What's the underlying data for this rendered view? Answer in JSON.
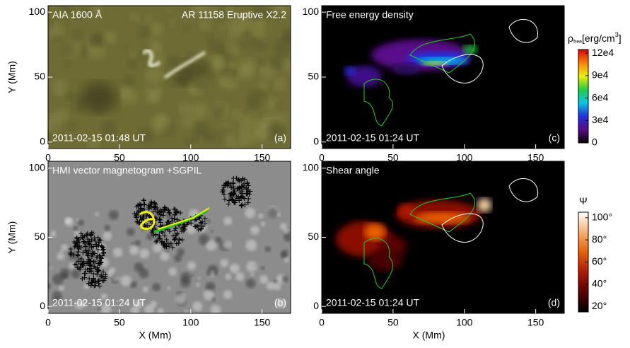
{
  "chart_data": [
    {
      "type": "image",
      "title": "AIA 1600 Å",
      "subtitle": "AR 11158 Eruptive X2.2",
      "timestamp": "2011-02-15 01:48 UT",
      "panel_label": "(a)",
      "ylabel": "Y (Mm)",
      "xlim": [
        0,
        170
      ],
      "ylim": [
        -5,
        105
      ],
      "xticks": [
        0,
        50,
        100,
        150
      ],
      "yticks": [
        0,
        50,
        100
      ]
    },
    {
      "type": "image",
      "title": "HMI vector magnetogram +SGPIL",
      "timestamp": "2011-02-15 01:24 UT",
      "panel_label": "(b)",
      "ylabel": "Y (Mm)",
      "xlabel": "X (Mm)",
      "xlim": [
        0,
        170
      ],
      "ylim": [
        -5,
        105
      ],
      "xticks": [
        0,
        50,
        100,
        150
      ],
      "yticks": [
        0,
        50,
        100
      ]
    },
    {
      "type": "image",
      "title": "Free energy density",
      "timestamp": "2011-02-15 01:24 UT",
      "panel_label": "(c)",
      "xlim": [
        0,
        170
      ],
      "ylim": [
        -5,
        105
      ],
      "xticks": [
        0,
        50,
        100,
        150
      ],
      "yticks": [
        0,
        50,
        100
      ],
      "colorbar": {
        "label": {
          "symbol": "ρ",
          "sub": "free",
          "unit": "[erg/cm",
          "sup": "3",
          "end": "]"
        },
        "colors": [
          "#000000",
          "#5a0a8a",
          "#2030e0",
          "#00c8e8",
          "#20d040",
          "#f0f000",
          "#ff8000",
          "#e00000"
        ],
        "lim": [
          0,
          125000
        ],
        "ticks": [
          0,
          {
            "value": 30000,
            "label": "3e4"
          },
          {
            "value": 60000,
            "label": "6e4"
          },
          {
            "value": 90000,
            "label": "9e4"
          },
          {
            "value": 120000,
            "label": "12e4"
          }
        ]
      }
    },
    {
      "type": "image",
      "title": "Shear angle",
      "timestamp": "2011-02-15 01:24 UT",
      "panel_label": "(d)",
      "xlabel": "X (Mm)",
      "xlim": [
        0,
        170
      ],
      "ylim": [
        -5,
        105
      ],
      "xticks": [
        0,
        50,
        100,
        150
      ],
      "yticks": [
        0,
        50,
        100
      ],
      "colorbar": {
        "label": {
          "symbol": "Ψ"
        },
        "colors": [
          "#000000",
          "#5a0000",
          "#b01800",
          "#e86000",
          "#f8b070",
          "#ffffff"
        ],
        "lim": [
          15,
          105
        ],
        "ticks": [
          {
            "value": 20,
            "label": "20°"
          },
          {
            "value": 40,
            "label": "40°"
          },
          {
            "value": 60,
            "label": "60°"
          },
          {
            "value": 80,
            "label": "80°"
          },
          {
            "value": 100,
            "label": "100°"
          }
        ]
      }
    }
  ]
}
